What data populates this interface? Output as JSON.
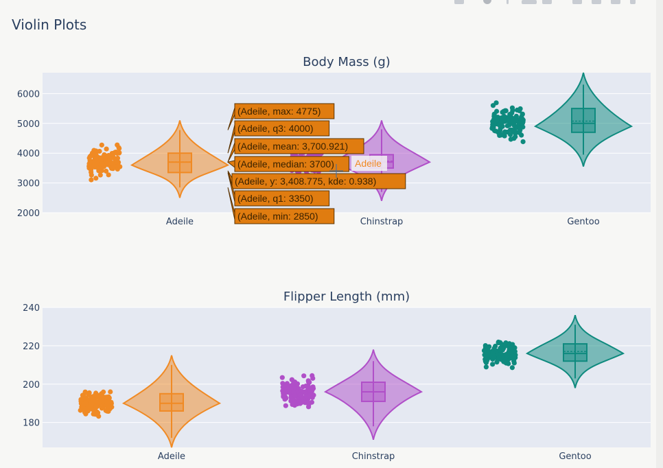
{
  "page": {
    "title": "Violin Plots"
  },
  "modebar": {
    "icons": [
      "camera-icon",
      "zoom-icon",
      "pan-icon",
      "box-select-icon",
      "lasso-icon",
      "zoom-in-icon",
      "zoom-out-icon",
      "autoscale-icon",
      "reset-axes-icon"
    ]
  },
  "colors": {
    "Adeile": "#f08a24",
    "Chinstrap": "#b04fc8",
    "Gentoo": "#0e8a7e",
    "plot_bg": "#e5e9f2",
    "grid": "#ffffff"
  },
  "chart_data": [
    {
      "type": "violin",
      "title": "Body Mass (g)",
      "categories": [
        "Adeile",
        "Chinstrap",
        "Gentoo"
      ],
      "ylim": [
        2000,
        6700
      ],
      "yticks": [
        "2000",
        "3000",
        "4000",
        "5000",
        "6000"
      ],
      "series": [
        {
          "name": "Adeile",
          "min": 2850,
          "q1": 3350,
          "median": 3700,
          "mean": 3700.921,
          "q3": 4000,
          "max": 4775,
          "kde_min": 2500,
          "kde_max": 5100,
          "kde_peak": 3600
        },
        {
          "name": "Chinstrap",
          "min": 2700,
          "q1": 3500,
          "median": 3700,
          "mean": 3733,
          "q3": 3950,
          "max": 4800,
          "kde_min": 2400,
          "kde_max": 5100,
          "kde_peak": 3700
        },
        {
          "name": "Gentoo",
          "min": 3950,
          "q1": 4700,
          "median": 5000,
          "mean": 5076,
          "q3": 5500,
          "max": 6300,
          "kde_min": 3550,
          "kde_max": 6700,
          "kde_peak": 4900
        }
      ],
      "hover": {
        "lines": [
          "(Adeile, max: 4775)",
          "(Adeile, q3: 4000)",
          "(Adeile, mean: 3,700.921)",
          "(Adeile, median: 3700)",
          "(Adeile, y: 3,408.775, kde: 0.938)",
          "(Adeile, q1: 3350)",
          "(Adeile, min: 2850)"
        ],
        "trace_label": "Adeile"
      }
    },
    {
      "type": "violin",
      "title": "Flipper Length (mm)",
      "categories": [
        "Adeile",
        "Chinstrap",
        "Gentoo"
      ],
      "ylim": [
        167,
        240
      ],
      "yticks": [
        "180",
        "200",
        "220",
        "240"
      ],
      "series": [
        {
          "name": "Adeile",
          "min": 172,
          "q1": 186,
          "median": 190,
          "mean": 190,
          "q3": 195,
          "max": 210,
          "kde_min": 167,
          "kde_max": 215,
          "kde_peak": 190
        },
        {
          "name": "Chinstrap",
          "min": 178,
          "q1": 191,
          "median": 196,
          "mean": 196,
          "q3": 201,
          "max": 212,
          "kde_min": 171,
          "kde_max": 218,
          "kde_peak": 196
        },
        {
          "name": "Gentoo",
          "min": 203,
          "q1": 212,
          "median": 216,
          "mean": 217,
          "q3": 221,
          "max": 231,
          "kde_min": 198,
          "kde_max": 236,
          "kde_peak": 216
        }
      ]
    }
  ]
}
